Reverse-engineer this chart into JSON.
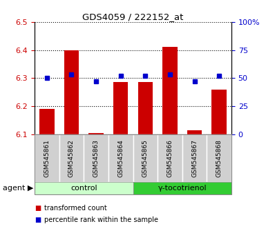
{
  "title": "GDS4059 / 222152_at",
  "samples": [
    "GSM545861",
    "GSM545862",
    "GSM545863",
    "GSM545864",
    "GSM545865",
    "GSM545866",
    "GSM545867",
    "GSM545868"
  ],
  "red_values": [
    6.19,
    6.4,
    6.105,
    6.285,
    6.285,
    6.41,
    6.115,
    6.26
  ],
  "blue_values": [
    50,
    53,
    47,
    52,
    52,
    53,
    47,
    52
  ],
  "ylim_left": [
    6.1,
    6.5
  ],
  "ylim_right": [
    0,
    100
  ],
  "yticks_left": [
    6.1,
    6.2,
    6.3,
    6.4,
    6.5
  ],
  "yticks_right": [
    0,
    25,
    50,
    75,
    100
  ],
  "control_label": "control",
  "treatment_label": "γ-tocotrienol",
  "agent_label": "agent",
  "legend_red": "transformed count",
  "legend_blue": "percentile rank within the sample",
  "bar_color": "#cc0000",
  "dot_color": "#0000cc",
  "control_bg": "#ccffcc",
  "treatment_bg": "#33cc33",
  "sample_bg": "#d0d0d0",
  "bar_width": 0.6,
  "base_value": 6.1
}
